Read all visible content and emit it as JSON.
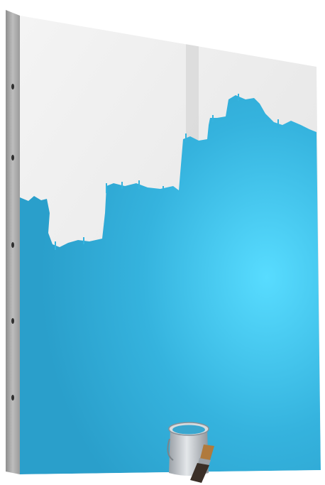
{
  "scene": {
    "subject": "partially-painted-panel",
    "icons": [
      "paint-bucket-icon",
      "paintbrush-icon"
    ]
  },
  "colors": {
    "background": "#ffffff",
    "primer_white": "#ececec",
    "paint_blue": "#35b3de",
    "paint_blue_highlight": "#58dcff",
    "panel_edge": "#a9a9a9",
    "bucket_metal": "#c9cdd1",
    "bucket_paint": "#3aa7cf",
    "brush_handle": "#b07a3c"
  }
}
